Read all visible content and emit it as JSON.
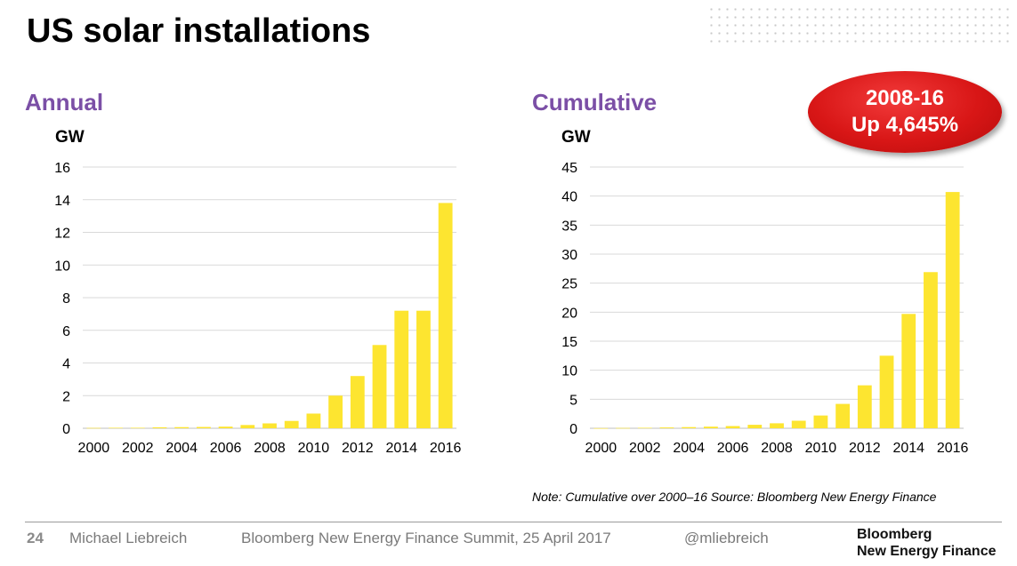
{
  "page": {
    "title": "US solar installations",
    "badge_line1": "2008-16",
    "badge_line2": "Up 4,645%",
    "note": "Note: Cumulative over 2000–16  Source: Bloomberg New Energy Finance",
    "footer": {
      "page_number": "24",
      "author": "Michael Liebreich",
      "event": "Bloomberg New Energy Finance Summit, 25 April 2017",
      "handle": "@mliebreich",
      "brand_line1": "Bloomberg",
      "brand_line2": "New Energy Finance"
    }
  },
  "colors": {
    "bar": "#fde530",
    "subtitle": "#7b4fa6",
    "badge": "#d81616"
  },
  "chart_data": [
    {
      "type": "bar",
      "title": "Annual",
      "ylabel": "GW",
      "xlabel": "",
      "categories": [
        "2000",
        "2001",
        "2002",
        "2003",
        "2004",
        "2005",
        "2006",
        "2007",
        "2008",
        "2009",
        "2010",
        "2011",
        "2012",
        "2013",
        "2014",
        "2015",
        "2016"
      ],
      "x_tick_labels": [
        "2000",
        "2002",
        "2004",
        "2006",
        "2008",
        "2010",
        "2012",
        "2014",
        "2016"
      ],
      "values": [
        0.02,
        0.03,
        0.03,
        0.06,
        0.07,
        0.08,
        0.1,
        0.2,
        0.3,
        0.45,
        0.9,
        2.0,
        3.2,
        5.1,
        7.2,
        7.2,
        13.8
      ],
      "ylim": [
        0,
        16
      ],
      "yticks": [
        0,
        2,
        4,
        6,
        8,
        10,
        12,
        14,
        16
      ],
      "grid": true
    },
    {
      "type": "bar",
      "title": "Cumulative",
      "ylabel": "GW",
      "xlabel": "",
      "categories": [
        "2000",
        "2001",
        "2002",
        "2003",
        "2004",
        "2005",
        "2006",
        "2007",
        "2008",
        "2009",
        "2010",
        "2011",
        "2012",
        "2013",
        "2014",
        "2015",
        "2016"
      ],
      "x_tick_labels": [
        "2000",
        "2002",
        "2004",
        "2006",
        "2008",
        "2010",
        "2012",
        "2014",
        "2016"
      ],
      "values": [
        0.02,
        0.05,
        0.08,
        0.14,
        0.2,
        0.28,
        0.38,
        0.6,
        0.86,
        1.3,
        2.2,
        4.2,
        7.4,
        12.5,
        19.7,
        26.9,
        40.7
      ],
      "ylim": [
        0,
        45
      ],
      "yticks": [
        0,
        5,
        10,
        15,
        20,
        25,
        30,
        35,
        40,
        45
      ],
      "grid": true
    }
  ]
}
